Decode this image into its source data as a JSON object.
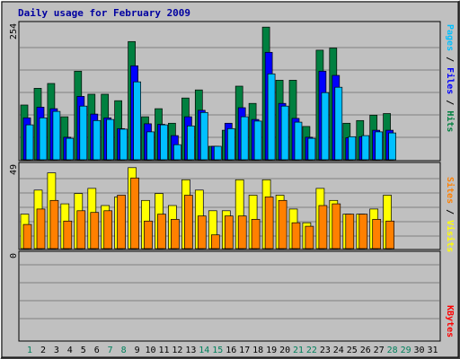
{
  "chart_data": {
    "type": "bar",
    "title": "Daily usage for February 2009",
    "days": [
      "1",
      "2",
      "3",
      "4",
      "5",
      "6",
      "7",
      "8",
      "9",
      "10",
      "11",
      "12",
      "13",
      "14",
      "15",
      "16",
      "17",
      "18",
      "19",
      "20",
      "21",
      "22",
      "23",
      "24",
      "25",
      "26",
      "27",
      "28",
      "29",
      "30",
      "31"
    ],
    "weekend_days": [
      "1",
      "7",
      "8",
      "14",
      "15",
      "21",
      "22",
      "28",
      "29"
    ],
    "panels": [
      {
        "id": "hits-files-pages",
        "ymax_label": "254",
        "ymax": 254,
        "series_labels": [
          {
            "text": "Pages",
            "color": "#00c0ff"
          },
          {
            "text": " / ",
            "color": "#000000"
          },
          {
            "text": "Files",
            "color": "#0000ff"
          },
          {
            "text": " / ",
            "color": "#000000"
          },
          {
            "text": "Hits",
            "color": "#008040"
          }
        ],
        "series": [
          {
            "key": "hits",
            "color": "#008040",
            "values": [
              102,
              133,
              142,
              80,
              165,
              122,
              122,
              110,
              220,
              80,
              95,
              68,
              115,
              130,
              25,
              55,
              137,
              105,
              247,
              148,
              148,
              62,
              204,
              208,
              68,
              73,
              83,
              86
            ]
          },
          {
            "key": "files",
            "color": "#0000ff",
            "values": [
              78,
              98,
              95,
              42,
              118,
              85,
              78,
              58,
              175,
              67,
              66,
              45,
              80,
              92,
              25,
              68,
              97,
              75,
              200,
              105,
              77,
              42,
              165,
              157,
              41,
              43,
              55,
              55
            ]
          },
          {
            "key": "pages",
            "color": "#00c0ff",
            "values": [
              65,
              78,
              90,
              40,
              100,
              73,
              75,
              57,
              145,
              52,
              65,
              28,
              63,
              88,
              25,
              58,
              80,
              72,
              160,
              100,
              70,
              40,
              125,
              135,
              43,
              45,
              52,
              50
            ]
          }
        ]
      },
      {
        "id": "visits-sites",
        "ymax_label": "49",
        "ymax": 49,
        "series_labels": [
          {
            "text": "Sites",
            "color": "#ff8000"
          },
          {
            "text": " / ",
            "color": "#000000"
          },
          {
            "text": "Visits",
            "color": "#ffff00"
          }
        ],
        "series": [
          {
            "key": "visits",
            "color": "#ffff00",
            "values": [
              20,
              34,
              44,
              26,
              32,
              35,
              25,
              30,
              47,
              28,
              32,
              25,
              40,
              34,
              22,
              22,
              40,
              31,
              40,
              31,
              23,
              15,
              35,
              28,
              20,
              20,
              23,
              31
            ]
          },
          {
            "key": "sites",
            "color": "#ff8000",
            "values": [
              14,
              23,
              28,
              16,
              22,
              21,
              22,
              31,
              41,
              16,
              20,
              17,
              31,
              19,
              8,
              19,
              19,
              17,
              30,
              28,
              15,
              13,
              25,
              26,
              20,
              20,
              17,
              16
            ]
          }
        ]
      },
      {
        "id": "kbytes",
        "ymax_label": "0",
        "ymax": 1,
        "series_labels": [
          {
            "text": "KBytes",
            "color": "#ff0000"
          }
        ],
        "series": [
          {
            "key": "kbytes",
            "color": "#ff0000",
            "values": []
          }
        ]
      }
    ],
    "colors": {
      "background": "#c0c0c0",
      "grid": "#808080",
      "weekday_label": "#000000",
      "weekend_label": "#00805c",
      "title": "#0000a0"
    }
  }
}
